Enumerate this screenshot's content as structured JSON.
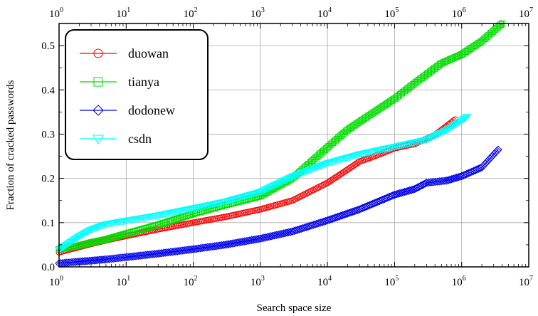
{
  "chart_data": {
    "type": "line",
    "xlabel": "Search space size",
    "ylabel": "Fraction of cracked passwords",
    "x_scale": "log10",
    "xlim": [
      1,
      10000000
    ],
    "ylim": [
      0,
      0.55
    ],
    "grid": true,
    "legend_position": "top-left",
    "x_tick_labels": [
      "10^0",
      "10^1",
      "10^2",
      "10^3",
      "10^4",
      "10^5",
      "10^6",
      "10^7"
    ],
    "y_tick_labels": [
      "0.0",
      "0.1",
      "0.2",
      "0.3",
      "0.4",
      "0.5"
    ],
    "series": [
      {
        "name": "duowan",
        "color": "#ff0000",
        "marker": "circle",
        "x": [
          1,
          2,
          3,
          5,
          10,
          30,
          100,
          300,
          1000,
          3000,
          10000,
          20000,
          30000,
          50000,
          100000,
          200000,
          400000,
          800000
        ],
        "y": [
          0.033,
          0.045,
          0.052,
          0.06,
          0.07,
          0.085,
          0.1,
          0.113,
          0.13,
          0.15,
          0.19,
          0.22,
          0.238,
          0.25,
          0.268,
          0.278,
          0.298,
          0.333
        ]
      },
      {
        "name": "tianya",
        "color": "#00dd00",
        "marker": "square",
        "x": [
          1,
          2,
          3,
          5,
          10,
          30,
          100,
          300,
          1000,
          3000,
          10000,
          20000,
          50000,
          100000,
          200000,
          500000,
          1000000,
          2000000,
          4000000
        ],
        "y": [
          0.04,
          0.048,
          0.055,
          0.062,
          0.075,
          0.095,
          0.12,
          0.14,
          0.16,
          0.2,
          0.27,
          0.31,
          0.35,
          0.38,
          0.415,
          0.46,
          0.48,
          0.51,
          0.55
        ]
      },
      {
        "name": "dodonew",
        "color": "#0000ee",
        "marker": "diamond",
        "x": [
          1,
          2,
          3,
          5,
          10,
          30,
          100,
          300,
          1000,
          3000,
          10000,
          30000,
          100000,
          200000,
          300000,
          600000,
          1000000,
          2000000,
          3500000
        ],
        "y": [
          0.008,
          0.012,
          0.014,
          0.017,
          0.022,
          0.03,
          0.04,
          0.05,
          0.064,
          0.08,
          0.105,
          0.13,
          0.163,
          0.176,
          0.19,
          0.195,
          0.205,
          0.225,
          0.265
        ]
      },
      {
        "name": "csdn",
        "color": "#00ffff",
        "marker": "triangle-down",
        "x": [
          1,
          2,
          3,
          5,
          10,
          30,
          100,
          300,
          1000,
          3000,
          10000,
          30000,
          100000,
          300000,
          600000,
          1200000
        ],
        "y": [
          0.04,
          0.07,
          0.085,
          0.097,
          0.105,
          0.117,
          0.133,
          0.148,
          0.17,
          0.205,
          0.235,
          0.255,
          0.272,
          0.288,
          0.31,
          0.34
        ]
      }
    ]
  }
}
